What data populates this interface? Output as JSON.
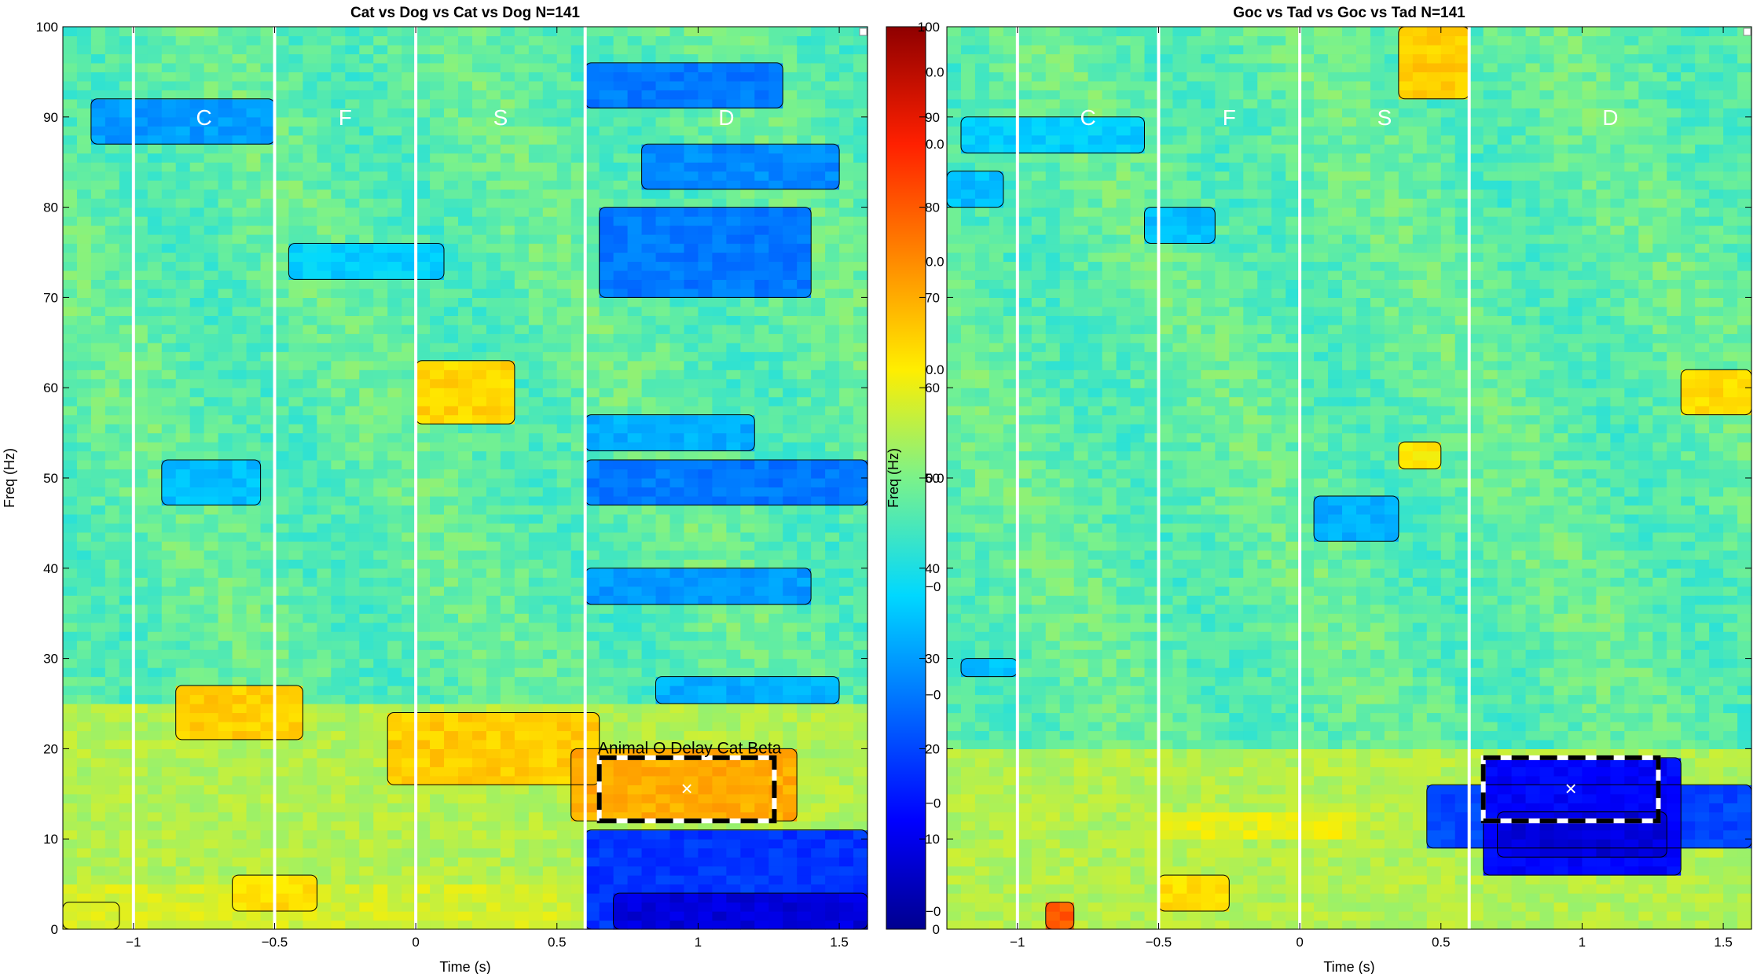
{
  "chart_data": [
    {
      "type": "heatmap",
      "title": "Cat vs Dog vs Cat vs Dog N=141",
      "xlabel": "Time (s)",
      "ylabel": "Freq (Hz)",
      "xlim": [
        -1.25,
        1.6
      ],
      "ylim": [
        0,
        100
      ],
      "xticks": [
        -1,
        -0.5,
        0,
        0.5,
        1,
        1.5
      ],
      "xtick_labels": [
        "−1",
        "−0.5",
        "0",
        "0.5",
        "1",
        "1.5"
      ],
      "yticks": [
        0,
        10,
        20,
        30,
        40,
        50,
        60,
        70,
        80,
        90,
        100
      ],
      "ytick_labels": [
        "0",
        "10",
        "20",
        "30",
        "40",
        "50",
        "60",
        "70",
        "80",
        "90",
        "100"
      ],
      "epoch_lines": [
        -1,
        -0.5,
        0,
        0.6
      ],
      "epoch_labels": [
        {
          "text": "C",
          "x": -0.75,
          "y": 90
        },
        {
          "text": "F",
          "x": -0.25,
          "y": 90
        },
        {
          "text": "S",
          "x": 0.3,
          "y": 90
        },
        {
          "text": "D",
          "x": 1.1,
          "y": 90
        }
      ],
      "roi": {
        "x0": 0.65,
        "x1": 1.27,
        "y0": 12,
        "y1": 19
      },
      "roi_marker": {
        "label": "×",
        "x": 0.96,
        "y": 15.5
      },
      "annotation": {
        "text": "Animal O Delay Cat Beta",
        "x": 0.3,
        "y": 20
      },
      "regions": [
        {
          "x0": -1.25,
          "x1": -1.05,
          "y0": 0,
          "y1": 3,
          "v": 0.98
        },
        {
          "x0": -1.25,
          "x1": 1.6,
          "y0": 0,
          "y1": 5,
          "v": 0.58
        },
        {
          "x0": -1.25,
          "x1": 1.6,
          "y0": 5,
          "y1": 25,
          "v": 0.55
        },
        {
          "x0": -0.85,
          "x1": -0.4,
          "y0": 21,
          "y1": 27,
          "v": 0.66
        },
        {
          "x0": -0.65,
          "x1": -0.35,
          "y0": 2,
          "y1": 6,
          "v": 0.64
        },
        {
          "x0": -0.1,
          "x1": 0.65,
          "y0": 16,
          "y1": 24,
          "v": 0.66
        },
        {
          "x0": 0.55,
          "x1": 1.35,
          "y0": 12,
          "y1": 20,
          "v": 0.7
        },
        {
          "x0": 0.0,
          "x1": 0.35,
          "y0": 56,
          "y1": 63,
          "v": 0.65
        },
        {
          "x0": -1.15,
          "x1": -0.5,
          "y0": 87,
          "y1": 92,
          "v": 0.3
        },
        {
          "x0": -0.9,
          "x1": -0.55,
          "y0": 47,
          "y1": 52,
          "v": 0.34
        },
        {
          "x0": -0.45,
          "x1": 0.1,
          "y0": 72,
          "y1": 76,
          "v": 0.36
        },
        {
          "x0": 0.6,
          "x1": 1.6,
          "y0": 0,
          "y1": 11,
          "v": 0.18
        },
        {
          "x0": 0.7,
          "x1": 1.6,
          "y0": 0,
          "y1": 4,
          "v": 0.08
        },
        {
          "x0": 0.6,
          "x1": 1.4,
          "y0": 36,
          "y1": 40,
          "v": 0.3
        },
        {
          "x0": 0.6,
          "x1": 1.6,
          "y0": 47,
          "y1": 52,
          "v": 0.26
        },
        {
          "x0": 0.6,
          "x1": 1.2,
          "y0": 53,
          "y1": 57,
          "v": 0.32
        },
        {
          "x0": 0.65,
          "x1": 1.4,
          "y0": 70,
          "y1": 80,
          "v": 0.26
        },
        {
          "x0": 0.8,
          "x1": 1.5,
          "y0": 82,
          "y1": 87,
          "v": 0.28
        },
        {
          "x0": 0.6,
          "x1": 1.3,
          "y0": 91,
          "y1": 96,
          "v": 0.26
        },
        {
          "x0": 0.85,
          "x1": 1.5,
          "y0": 25,
          "y1": 28,
          "v": 0.32
        }
      ]
    },
    {
      "type": "heatmap",
      "title": "Goc vs Tad vs Goc vs Tad N=141",
      "xlabel": "Time (s)",
      "ylabel": "Freq (Hz)",
      "xlim": [
        -1.25,
        1.6
      ],
      "ylim": [
        0,
        100
      ],
      "xticks": [
        -1,
        -0.5,
        0,
        0.5,
        1,
        1.5
      ],
      "xtick_labels": [
        "−1",
        "−0.5",
        "0",
        "0.5",
        "1",
        "1.5"
      ],
      "yticks": [
        0,
        10,
        20,
        30,
        40,
        50,
        60,
        70,
        80,
        90,
        100
      ],
      "ytick_labels": [
        "0",
        "10",
        "20",
        "30",
        "40",
        "50",
        "60",
        "70",
        "80",
        "90",
        "100"
      ],
      "epoch_lines": [
        -1,
        -0.5,
        0,
        0.6
      ],
      "epoch_labels": [
        {
          "text": "C",
          "x": -0.75,
          "y": 90
        },
        {
          "text": "F",
          "x": -0.25,
          "y": 90
        },
        {
          "text": "S",
          "x": 0.3,
          "y": 90
        },
        {
          "text": "D",
          "x": 1.1,
          "y": 90
        }
      ],
      "roi": {
        "x0": 0.65,
        "x1": 1.27,
        "y0": 12,
        "y1": 19
      },
      "roi_marker": {
        "label": "×",
        "x": 0.96,
        "y": 15.5
      },
      "regions": [
        {
          "x0": -1.25,
          "x1": 1.6,
          "y0": 0,
          "y1": 20,
          "v": 0.55
        },
        {
          "x0": -0.5,
          "x1": 0.2,
          "y0": 10,
          "y1": 13,
          "v": 0.6
        },
        {
          "x0": -0.5,
          "x1": -0.25,
          "y0": 2,
          "y1": 6,
          "v": 0.64
        },
        {
          "x0": -0.9,
          "x1": -0.8,
          "y0": 0,
          "y1": 3,
          "v": 0.8
        },
        {
          "x0": 0.35,
          "x1": 0.6,
          "y0": 92,
          "y1": 100,
          "v": 0.66
        },
        {
          "x0": 1.35,
          "x1": 1.6,
          "y0": 57,
          "y1": 62,
          "v": 0.64
        },
        {
          "x0": 0.35,
          "x1": 0.5,
          "y0": 51,
          "y1": 54,
          "v": 0.62
        },
        {
          "x0": 0.45,
          "x1": 1.6,
          "y0": 9,
          "y1": 16,
          "v": 0.2
        },
        {
          "x0": 0.65,
          "x1": 1.35,
          "y0": 6,
          "y1": 19,
          "v": 0.12
        },
        {
          "x0": 0.7,
          "x1": 1.3,
          "y0": 8,
          "y1": 13,
          "v": 0.08
        },
        {
          "x0": 0.05,
          "x1": 0.35,
          "y0": 43,
          "y1": 48,
          "v": 0.32
        },
        {
          "x0": -1.2,
          "x1": -0.55,
          "y0": 86,
          "y1": 90,
          "v": 0.36
        },
        {
          "x0": -0.55,
          "x1": -0.3,
          "y0": 76,
          "y1": 80,
          "v": 0.34
        },
        {
          "x0": -1.25,
          "x1": -1.05,
          "y0": 80,
          "y1": 84,
          "v": 0.34
        },
        {
          "x0": -1.2,
          "x1": -1.0,
          "y0": 28,
          "y1": 30,
          "v": 0.34
        }
      ]
    }
  ],
  "colorbar": {
    "ticks": [
      0,
      10,
      20,
      30,
      40,
      50,
      60,
      70,
      80,
      90,
      100
    ],
    "tick_labels": [
      "0",
      "10",
      "20",
      "30",
      "40",
      "50",
      "60",
      "70",
      "80",
      "90",
      "100"
    ],
    "ylabel": "Freq (Hz)",
    "ghost_labels": [
      "0.0",
      "0.0",
      "0.0",
      "0.0",
      "0.0",
      "−0",
      "−0",
      "−0",
      "−0"
    ]
  },
  "colors": {
    "lowest": "#00008f",
    "low": "#0050ff",
    "mid": "#5fe8e0",
    "high": "#ffd800",
    "highest": "#8f0000"
  }
}
